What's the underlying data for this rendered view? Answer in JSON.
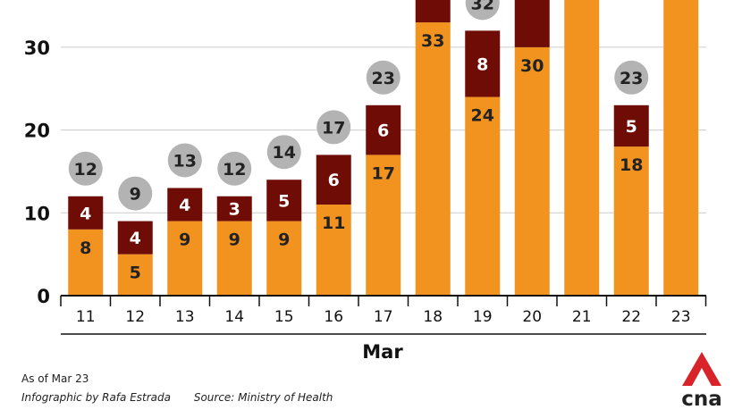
{
  "chart_data": {
    "type": "bar",
    "stacked": true,
    "categories": [
      "11",
      "12",
      "13",
      "14",
      "15",
      "16",
      "17",
      "18",
      "19",
      "20",
      "21",
      "22",
      "23"
    ],
    "series": [
      {
        "values": [
          8,
          5,
          9,
          9,
          9,
          11,
          17,
          33,
          24,
          30,
          null,
          18,
          null
        ],
        "color": "#f29320"
      },
      {
        "values": [
          4,
          4,
          4,
          3,
          5,
          6,
          6,
          null,
          8,
          null,
          null,
          5,
          null
        ],
        "color": "#6e0c05"
      }
    ],
    "totals": [
      12,
      9,
      13,
      12,
      14,
      17,
      23,
      null,
      32,
      null,
      null,
      23,
      null
    ],
    "xlabel": "Mar",
    "ylabel": "",
    "yticks": [
      0,
      10,
      20,
      30
    ],
    "ylim": [
      0,
      36
    ],
    "grid": true,
    "grid_color": "#cccccc",
    "total_badge_color": "#b3b3b3",
    "note": "Bars for 18, 20, 21, 23 extend beyond the top of the visible area"
  },
  "footer": {
    "as_of": "As of Mar 23",
    "credit": "Infographic by Rafa Estrada",
    "source": "Source: Ministry of Health"
  },
  "logo": {
    "text": "cna",
    "color": "#d8232a",
    "icon": "cna-logo-icon"
  }
}
